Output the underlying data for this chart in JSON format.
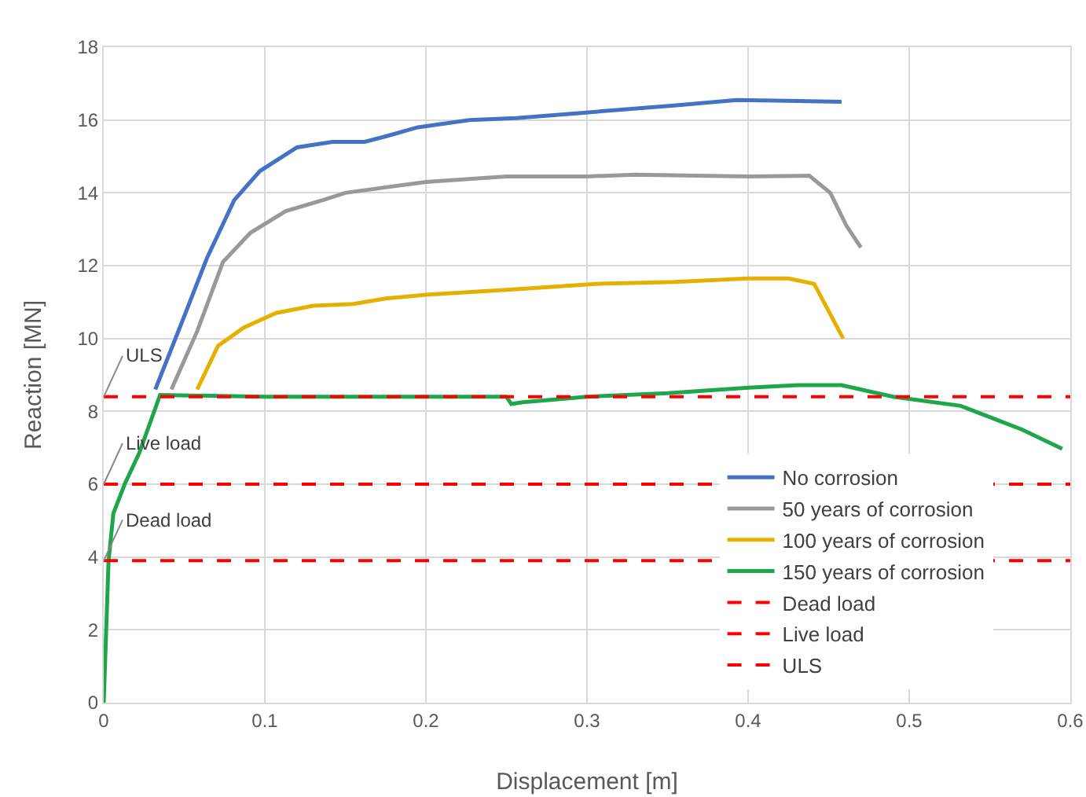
{
  "chart_data": {
    "type": "line",
    "xlabel": "Displacement [m]",
    "ylabel": "Reaction [MN]",
    "xlim": [
      0,
      0.6
    ],
    "xticks": [
      0,
      0.1,
      0.2,
      0.3,
      0.4,
      0.5,
      0.6
    ],
    "ylim": [
      0,
      18
    ],
    "yticks": [
      0,
      2,
      4,
      6,
      8,
      10,
      12,
      14,
      16,
      18
    ],
    "grid": true,
    "legend": "bottom right",
    "series": [
      {
        "name": "No corrosion",
        "color": "#4472c4",
        "x": [
          0.032,
          0.049,
          0.064,
          0.081,
          0.097,
          0.12,
          0.142,
          0.162,
          0.175,
          0.195,
          0.227,
          0.256,
          0.298,
          0.354,
          0.393,
          0.458
        ],
        "values": [
          8.6,
          10.5,
          12.2,
          13.8,
          14.6,
          15.25,
          15.4,
          15.4,
          15.55,
          15.8,
          16.0,
          16.05,
          16.2,
          16.4,
          16.55,
          16.5
        ]
      },
      {
        "name": "50 years of corrosion",
        "color": "#999999",
        "x": [
          0.042,
          0.058,
          0.074,
          0.091,
          0.113,
          0.136,
          0.15,
          0.2,
          0.25,
          0.3,
          0.33,
          0.4,
          0.438,
          0.451,
          0.461,
          0.47
        ],
        "values": [
          8.6,
          10.2,
          12.1,
          12.9,
          13.5,
          13.8,
          14.0,
          14.3,
          14.45,
          14.45,
          14.5,
          14.45,
          14.47,
          14.0,
          13.1,
          12.5
        ]
      },
      {
        "name": "100 years of corrosion",
        "color": "#e6b000",
        "x": [
          0.058,
          0.071,
          0.087,
          0.107,
          0.13,
          0.155,
          0.175,
          0.2,
          0.256,
          0.305,
          0.354,
          0.4,
          0.425,
          0.441,
          0.459
        ],
        "values": [
          8.6,
          9.8,
          10.3,
          10.7,
          10.9,
          10.95,
          11.1,
          11.2,
          11.35,
          11.5,
          11.55,
          11.65,
          11.65,
          11.5,
          10.0
        ]
      },
      {
        "name": "150 years of corrosion",
        "color": "#1fa64a",
        "x": [
          0,
          0.003,
          0.006,
          0.013,
          0.022,
          0.035,
          0.1,
          0.2,
          0.25,
          0.253,
          0.26,
          0.3,
          0.35,
          0.4,
          0.431,
          0.458,
          0.49,
          0.532,
          0.57,
          0.595
        ],
        "values": [
          0,
          3.9,
          5.2,
          6.0,
          6.85,
          8.45,
          8.4,
          8.4,
          8.4,
          8.2,
          8.25,
          8.4,
          8.5,
          8.65,
          8.72,
          8.72,
          8.4,
          8.15,
          7.5,
          6.97
        ]
      }
    ],
    "ref_lines": [
      {
        "axis": "y",
        "value": 3.9,
        "label": "Dead load",
        "color": "#ff0000",
        "line_style": "dashed"
      },
      {
        "axis": "y",
        "value": 6.0,
        "label": "Live load",
        "color": "#ff0000",
        "line_style": "dashed"
      },
      {
        "axis": "y",
        "value": 8.4,
        "label": "ULS",
        "color": "#ff0000",
        "line_style": "dashed"
      }
    ]
  }
}
